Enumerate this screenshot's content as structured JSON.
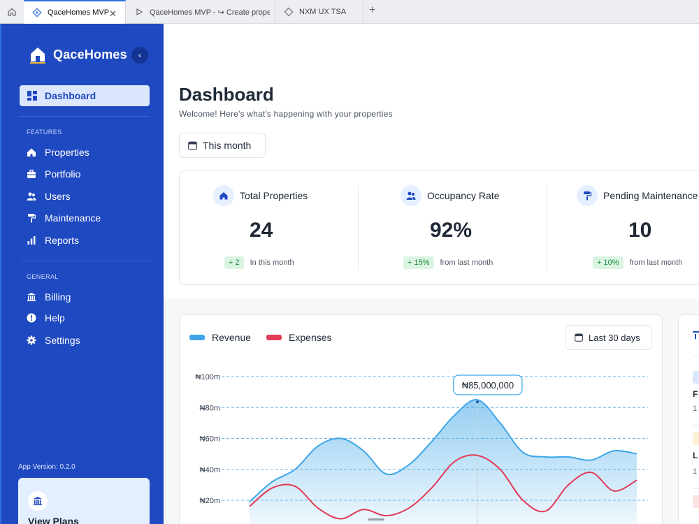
{
  "browser": {
    "tabs": [
      {
        "label": "QaceHomes MVP",
        "active": true
      },
      {
        "label": "QaceHomes MVP - ↪ Create property",
        "active": false
      },
      {
        "label": "NXM UX TSA",
        "active": false
      }
    ],
    "close_glyph": "✕",
    "new_tab_glyph": "+"
  },
  "sidebar": {
    "brand": "QaceHomes",
    "collapse_glyph": "‹",
    "active_item": {
      "label": "Dashboard",
      "icon": "dashboard-icon"
    },
    "features_label": "FEATURES",
    "features": [
      {
        "label": "Properties",
        "icon": "home-icon"
      },
      {
        "label": "Portfolio",
        "icon": "briefcase-icon"
      },
      {
        "label": "Users",
        "icon": "users-icon"
      },
      {
        "label": "Maintenance",
        "icon": "paint-roller-icon"
      },
      {
        "label": "Reports",
        "icon": "bar-chart-icon"
      }
    ],
    "general_label": "GENERAL",
    "general": [
      {
        "label": "Billing",
        "icon": "bank-icon"
      },
      {
        "label": "Help",
        "icon": "help-icon"
      },
      {
        "label": "Settings",
        "icon": "gear-icon"
      }
    ],
    "app_version": "App Version: 0.2.0",
    "plans_label": "View Plans"
  },
  "main": {
    "title": "Dashboard",
    "subtitle": "Welcome! Here's what's happening with your properties",
    "period": "This month",
    "stats": [
      {
        "label": "Total Properties",
        "value": "24",
        "delta": "+ 2",
        "note": "In this month",
        "icon": "home-icon"
      },
      {
        "label": "Occupancy Rate",
        "value": "92%",
        "delta": "+ 15%",
        "note": "from last month",
        "icon": "users-icon"
      },
      {
        "label": "Pending Maintenance",
        "value": "10",
        "delta": "+ 10%",
        "note": "from last month",
        "icon": "paint-roller-icon"
      }
    ],
    "chart": {
      "range_label": "Last 30 days",
      "tooltip": "₦85,000,000"
    },
    "right_panel": {
      "items": [
        "F",
        "L"
      ],
      "sub": "1"
    }
  },
  "colors": {
    "sidebar": "#1f49c0",
    "revenue": "#3ea6e8",
    "expenses": "#e23b57",
    "accent": "#2f6fde"
  },
  "chart_data": {
    "type": "area",
    "series": [
      {
        "name": "Revenue",
        "color": "#3ea6e8"
      },
      {
        "name": "Expenses",
        "color": "#e23b57"
      }
    ],
    "y_tick_labels": [
      "₦100m",
      "₦80m",
      "₦60m",
      "₦40m",
      "₦20m"
    ],
    "ylim": [
      0,
      100
    ],
    "y_unit": "₦m",
    "points": {
      "revenue": [
        19,
        32,
        40,
        55,
        60,
        52,
        37,
        43,
        58,
        75,
        85,
        70,
        51,
        48,
        48,
        46,
        52,
        50
      ],
      "expenses": [
        16,
        28,
        29,
        15,
        8,
        14,
        10,
        15,
        28,
        45,
        49,
        40,
        20,
        13,
        30,
        38,
        26,
        33
      ]
    },
    "highlight": {
      "series": "Revenue",
      "value": 85000000,
      "label": "₦85,000,000"
    },
    "grid": true,
    "legend": "top-left"
  }
}
